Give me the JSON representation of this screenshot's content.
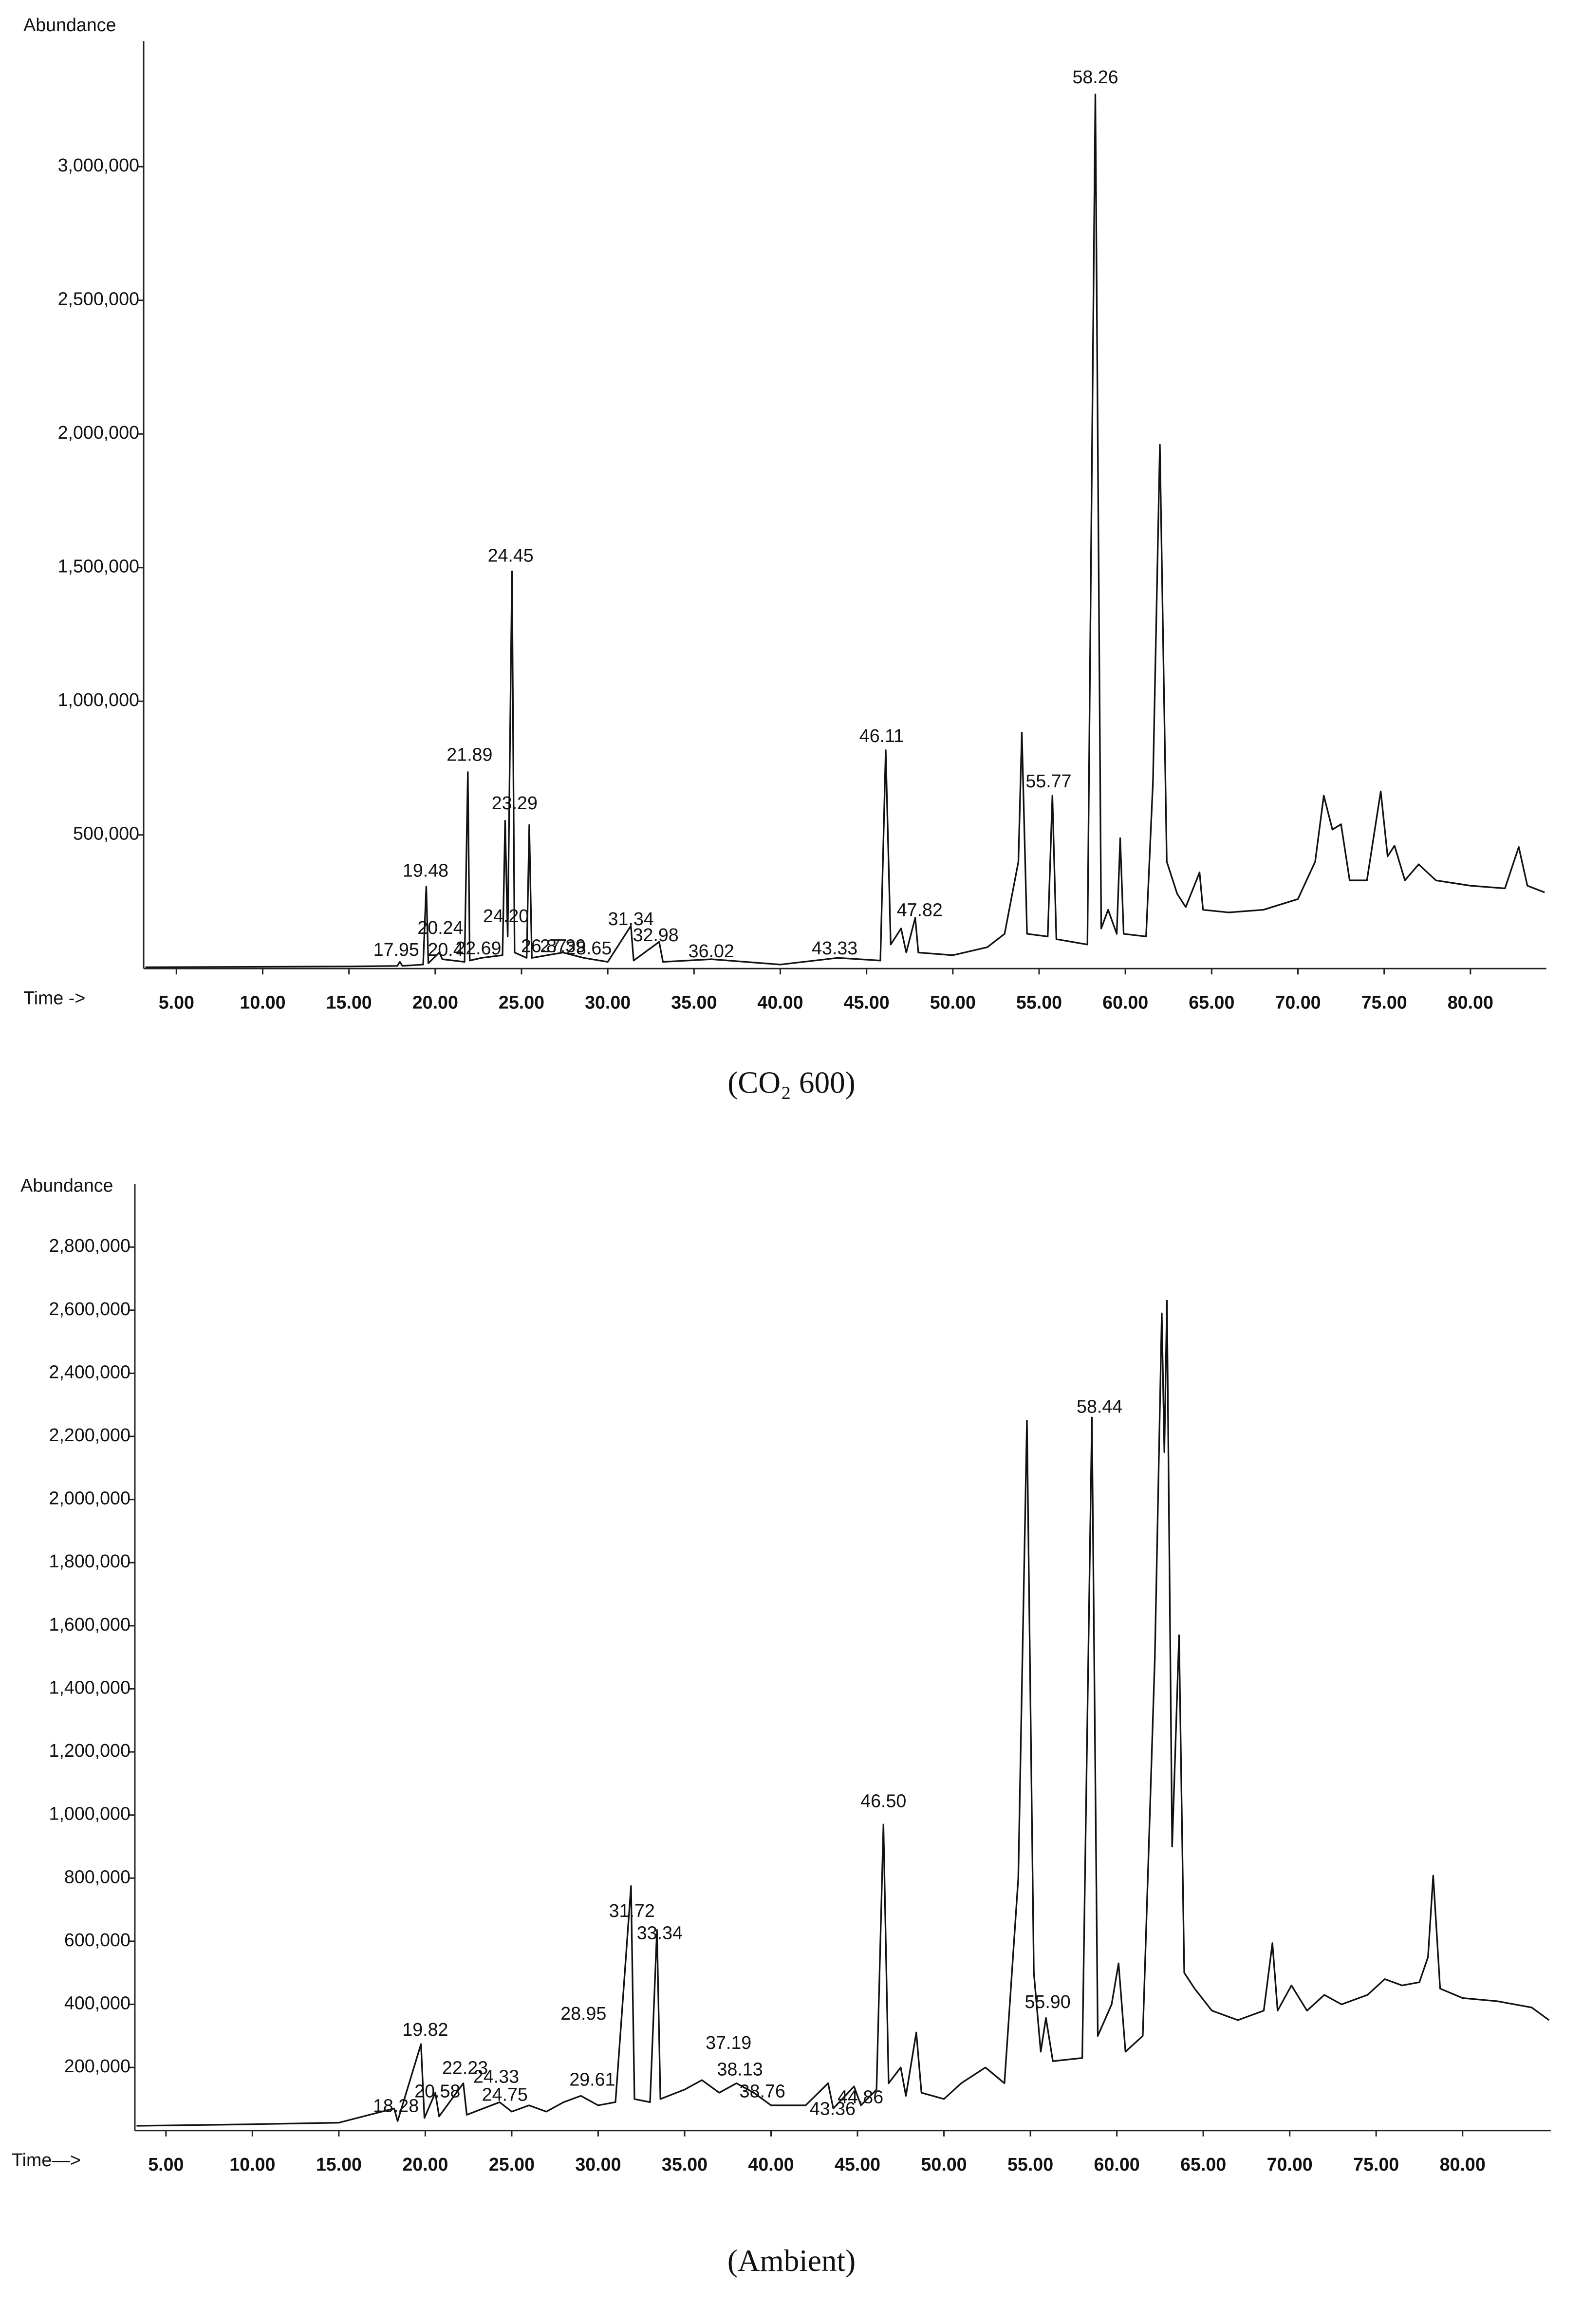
{
  "chart_data": [
    {
      "type": "line",
      "caption": "(CO₂ 600)",
      "ylabel": "Abundance",
      "xlabel": "Time ->",
      "xlim": [
        3.1,
        84.4
      ],
      "ylim": [
        0,
        3470000
      ],
      "xticks": [
        {
          "value": 5,
          "label": "5.00"
        },
        {
          "value": 10,
          "label": "10.00"
        },
        {
          "value": 15,
          "label": "15.00"
        },
        {
          "value": 20,
          "label": "20.00"
        },
        {
          "value": 25,
          "label": "25.00"
        },
        {
          "value": 30,
          "label": "30.00"
        },
        {
          "value": 35,
          "label": "35.00"
        },
        {
          "value": 40,
          "label": "40.00"
        },
        {
          "value": 45,
          "label": "45.00"
        },
        {
          "value": 50,
          "label": "50.00"
        },
        {
          "value": 55,
          "label": "55.00"
        },
        {
          "value": 60,
          "label": "60.00"
        },
        {
          "value": 65,
          "label": "65.00"
        },
        {
          "value": 70,
          "label": "70.00"
        },
        {
          "value": 75,
          "label": "75.00"
        },
        {
          "value": 80,
          "label": "80.00"
        }
      ],
      "yticks": [
        {
          "value": 500000,
          "label": "500,000"
        },
        {
          "value": 1000000,
          "label": "1,000,000"
        },
        {
          "value": 1500000,
          "label": "1,500,000"
        },
        {
          "value": 2000000,
          "label": "2,000,000"
        },
        {
          "value": 2500000,
          "label": "2,500,000"
        },
        {
          "value": 3000000,
          "label": "3,000,000"
        }
      ],
      "color": "#111111",
      "x": [
        3.2,
        15,
        17.8,
        17.95,
        18.1,
        19.3,
        19.48,
        19.6,
        20.24,
        20.41,
        21.7,
        21.89,
        22.0,
        22.69,
        23.9,
        24.05,
        24.2,
        24.45,
        24.6,
        25.3,
        25.45,
        25.6,
        26.5,
        27.4,
        28.6,
        30,
        31.34,
        31.5,
        32.98,
        33.2,
        36.0,
        40,
        43.33,
        45.8,
        46.11,
        46.4,
        47.0,
        47.3,
        47.82,
        48.0,
        50,
        52,
        53,
        53.8,
        54.0,
        54.3,
        55.5,
        55.77,
        56.0,
        57.8,
        58.26,
        58.6,
        59.0,
        59.5,
        59.7,
        59.9,
        61.2,
        61.6,
        62.0,
        62.4,
        63,
        63.5,
        64.3,
        64.5,
        66,
        68,
        70,
        71.0,
        71.5,
        72.0,
        72.5,
        73.0,
        74.0,
        74.8,
        75.2,
        75.6,
        76.2,
        77.0,
        78,
        80,
        82.0,
        82.8,
        83.3,
        84.3
      ],
      "values": [
        5000,
        8000,
        10000,
        25000,
        10000,
        15000,
        307000,
        20000,
        60000,
        35000,
        25000,
        735000,
        30000,
        40000,
        50000,
        553000,
        120000,
        1486000,
        60000,
        40000,
        537000,
        40000,
        50000,
        60000,
        40000,
        25000,
        160000,
        30000,
        100000,
        25000,
        35000,
        15000,
        40000,
        30000,
        817000,
        90000,
        150000,
        60000,
        190000,
        60000,
        50000,
        80000,
        130000,
        400000,
        883000,
        130000,
        120000,
        647000,
        110000,
        90000,
        3270000,
        150000,
        220000,
        130000,
        488000,
        130000,
        120000,
        700000,
        1960000,
        400000,
        280000,
        230000,
        360000,
        220000,
        210000,
        220000,
        260000,
        400000,
        647000,
        520000,
        540000,
        330000,
        330000,
        663000,
        420000,
        460000,
        330000,
        390000,
        330000,
        310000,
        300000,
        455000,
        310000,
        285000
      ],
      "annotations": [
        {
          "label": "58.26",
          "x": 58.26,
          "y": 3330000
        },
        {
          "label": "24.45",
          "x": 24.37,
          "y": 1540000
        },
        {
          "label": "21.89",
          "x": 21.99,
          "y": 795000
        },
        {
          "label": "23.29",
          "x": 24.6,
          "y": 614000
        },
        {
          "label": "19.48",
          "x": 19.44,
          "y": 362000
        },
        {
          "label": "20.24",
          "x": 20.3,
          "y": 148000
        },
        {
          "label": "24.20",
          "x": 24.1,
          "y": 192000
        },
        {
          "label": "17.95",
          "x": 17.74,
          "y": 66000
        },
        {
          "label": "20.4",
          "x": 20.6,
          "y": 66000
        },
        {
          "label": "22.69",
          "x": 22.5,
          "y": 71000
        },
        {
          "label": "26.87",
          "x": 26.3,
          "y": 80000
        },
        {
          "label": "27.39",
          "x": 27.4,
          "y": 80000
        },
        {
          "label": "28.65",
          "x": 28.9,
          "y": 71000
        },
        {
          "label": "31.34",
          "x": 31.34,
          "y": 181000
        },
        {
          "label": "32.98",
          "x": 32.78,
          "y": 121000
        },
        {
          "label": "36.02",
          "x": 36.0,
          "y": 60000
        },
        {
          "label": "43.33",
          "x": 43.15,
          "y": 71000
        },
        {
          "label": "46.11",
          "x": 45.87,
          "y": 866000
        },
        {
          "label": "47.82",
          "x": 48.08,
          "y": 214000
        },
        {
          "label": "55.77",
          "x": 55.55,
          "y": 696000
        }
      ]
    },
    {
      "type": "line",
      "caption": "(Ambient)",
      "ylabel": "Abundance",
      "xlabel": "Time—>",
      "xlim": [
        3.2,
        85.1
      ],
      "ylim": [
        0,
        3000000
      ],
      "xticks": [
        {
          "value": 5,
          "label": "5.00"
        },
        {
          "value": 10,
          "label": "10.00"
        },
        {
          "value": 15,
          "label": "15.00"
        },
        {
          "value": 20,
          "label": "20.00"
        },
        {
          "value": 25,
          "label": "25.00"
        },
        {
          "value": 30,
          "label": "30.00"
        },
        {
          "value": 35,
          "label": "35.00"
        },
        {
          "value": 40,
          "label": "40.00"
        },
        {
          "value": 45,
          "label": "45.00"
        },
        {
          "value": 50,
          "label": "50.00"
        },
        {
          "value": 55,
          "label": "55.00"
        },
        {
          "value": 60,
          "label": "60.00"
        },
        {
          "value": 65,
          "label": "65.00"
        },
        {
          "value": 70,
          "label": "70.00"
        },
        {
          "value": 75,
          "label": "75.00"
        },
        {
          "value": 80,
          "label": "80.00"
        }
      ],
      "yticks": [
        {
          "value": 200000,
          "label": "200,000"
        },
        {
          "value": 400000,
          "label": "400,000"
        },
        {
          "value": 600000,
          "label": "600,000"
        },
        {
          "value": 800000,
          "label": "800,000"
        },
        {
          "value": 1000000,
          "label": "1,000,000"
        },
        {
          "value": 1200000,
          "label": "1,200,000"
        },
        {
          "value": 1400000,
          "label": "1,400,000"
        },
        {
          "value": 1600000,
          "label": "1,600,000"
        },
        {
          "value": 1800000,
          "label": "1,800,000"
        },
        {
          "value": 2000000,
          "label": "2,000,000"
        },
        {
          "value": 2200000,
          "label": "2,200,000"
        },
        {
          "value": 2400000,
          "label": "2,400,000"
        },
        {
          "value": 2600000,
          "label": "2,600,000"
        },
        {
          "value": 2800000,
          "label": "2,800,000"
        }
      ],
      "color": "#111111",
      "x": [
        3.3,
        10,
        15,
        18.2,
        18.4,
        19.75,
        19.95,
        20.58,
        20.8,
        22.2,
        22.4,
        24.3,
        25,
        26,
        27,
        28,
        29,
        30,
        31,
        31.9,
        32.1,
        33.0,
        33.4,
        33.6,
        35,
        36,
        37,
        38,
        39,
        40,
        42,
        43.3,
        43.6,
        44.8,
        45.2,
        46.1,
        46.5,
        46.8,
        47.5,
        47.8,
        48.4,
        48.7,
        50,
        51,
        52.4,
        53.5,
        54.3,
        54.8,
        55.2,
        55.6,
        55.9,
        56.3,
        58.0,
        58.56,
        58.9,
        59.7,
        60.1,
        60.5,
        61.5,
        62.2,
        62.6,
        62.75,
        62.9,
        63.2,
        63.6,
        63.9,
        64.5,
        65.5,
        67,
        68.5,
        69.0,
        69.3,
        70.1,
        71,
        72,
        73,
        74.5,
        75.5,
        76.5,
        77.5,
        78.0,
        78.3,
        78.7,
        80,
        82,
        84,
        85
      ],
      "values": [
        15000,
        20000,
        25000,
        70000,
        30000,
        274000,
        40000,
        120000,
        45000,
        150000,
        50000,
        90000,
        60000,
        80000,
        60000,
        90000,
        110000,
        80000,
        90000,
        775000,
        100000,
        90000,
        636000,
        100000,
        130000,
        160000,
        120000,
        150000,
        120000,
        80000,
        80000,
        150000,
        70000,
        140000,
        80000,
        130000,
        970000,
        150000,
        200000,
        110000,
        311000,
        120000,
        100000,
        150000,
        200000,
        150000,
        800000,
        2250000,
        500000,
        250000,
        357000,
        220000,
        230000,
        2260000,
        300000,
        400000,
        530000,
        250000,
        300000,
        1500000,
        2590000,
        2150000,
        2630000,
        900000,
        1570000,
        500000,
        450000,
        380000,
        350000,
        380000,
        594000,
        380000,
        460000,
        380000,
        430000,
        400000,
        430000,
        480000,
        460000,
        470000,
        550000,
        808000,
        450000,
        420000,
        410000,
        390000,
        350000
      ],
      "annotations": [
        {
          "label": "58.44",
          "x": 59.0,
          "y": 2290000
        },
        {
          "label": "46.50",
          "x": 46.5,
          "y": 1040000
        },
        {
          "label": "31.72",
          "x": 31.95,
          "y": 692000
        },
        {
          "label": "33.34",
          "x": 33.56,
          "y": 622000
        },
        {
          "label": "55.90",
          "x": 56.0,
          "y": 404000
        },
        {
          "label": "19.82",
          "x": 20.0,
          "y": 316000
        },
        {
          "label": "20.58",
          "x": 20.7,
          "y": 121000
        },
        {
          "label": "22.23",
          "x": 22.3,
          "y": 195000
        },
        {
          "label": "24.33",
          "x": 24.1,
          "y": 167000
        },
        {
          "label": "24.75",
          "x": 24.6,
          "y": 110000
        },
        {
          "label": "28.95",
          "x": 29.15,
          "y": 367000
        },
        {
          "label": "29.61",
          "x": 29.66,
          "y": 158000
        },
        {
          "label": "37.19",
          "x": 37.54,
          "y": 274000
        },
        {
          "label": "38.13",
          "x": 38.2,
          "y": 190000
        },
        {
          "label": "38.76",
          "x": 39.5,
          "y": 121000
        },
        {
          "label": "43.36",
          "x": 43.56,
          "y": 65000
        },
        {
          "label": "44.86",
          "x": 45.17,
          "y": 102000
        },
        {
          "label": "18.28",
          "x": 18.3,
          "y": 74000
        }
      ]
    }
  ]
}
